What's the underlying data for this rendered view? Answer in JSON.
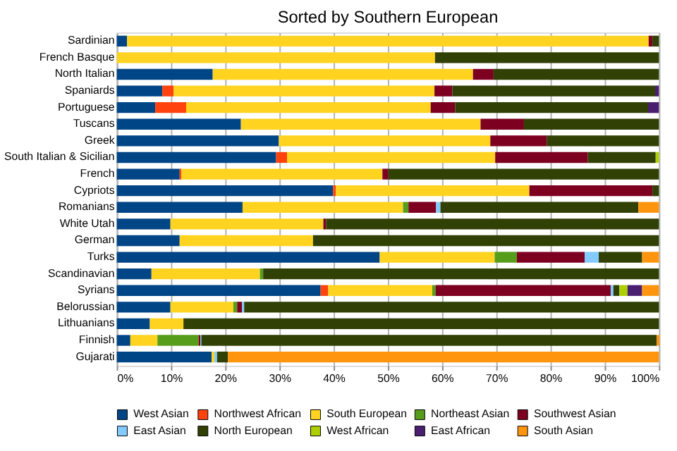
{
  "chart_data": {
    "type": "bar",
    "orientation": "horizontal",
    "stacked": true,
    "title": "Sorted by Southern European",
    "categories": [
      "Sardinian",
      "French Basque",
      "North Italian",
      "Spaniards",
      "Portuguese",
      "Tuscans",
      "Greek",
      "South Italian & Sicilian",
      "French",
      "Cypriots",
      "Romanians",
      "White Utah",
      "German",
      "Turks",
      "Scandinavian",
      "Syrians",
      "Belorussian",
      "Lithuanians",
      "Finnish",
      "Gujarati"
    ],
    "xlim": [
      0,
      100
    ],
    "xticks": [
      {
        "value": 0,
        "label": "0%"
      },
      {
        "value": 10,
        "label": "10%"
      },
      {
        "value": 20,
        "label": "20%"
      },
      {
        "value": 30,
        "label": "30%"
      },
      {
        "value": 40,
        "label": "40%"
      },
      {
        "value": 50,
        "label": "50%"
      },
      {
        "value": 60,
        "label": "60%"
      },
      {
        "value": 70,
        "label": "70%"
      },
      {
        "value": 80,
        "label": "80%"
      },
      {
        "value": 90,
        "label": "90%"
      },
      {
        "value": 100,
        "label": "100%"
      }
    ],
    "grid": "x",
    "legend": "bottom",
    "series": [
      {
        "name": "West Asian",
        "color": "#004586",
        "values": [
          1.9,
          0,
          17.7,
          8.4,
          7.1,
          22.9,
          29.9,
          29.4,
          11.6,
          39.9,
          23.2,
          9.9,
          11.6,
          48.5,
          6.4,
          37.6,
          9.9,
          6.1,
          2.5,
          17.5
        ]
      },
      {
        "name": "Northwest African",
        "color": "#ff420e",
        "values": [
          0,
          0,
          0,
          2.1,
          5.7,
          0,
          0,
          2.0,
          0.3,
          0.5,
          0,
          0,
          0,
          0,
          0,
          1.4,
          0,
          0,
          0,
          0
        ]
      },
      {
        "name": "South European",
        "color": "#ffd320",
        "values": [
          96.2,
          58.7,
          48.0,
          48.1,
          45.1,
          44.2,
          39.0,
          38.4,
          37.1,
          35.7,
          29.6,
          28.2,
          24.6,
          21.2,
          20.0,
          19.2,
          11.6,
          6.2,
          5.0,
          0.5
        ]
      },
      {
        "name": "Northeast Asian",
        "color": "#579d1c",
        "values": [
          0,
          0,
          0,
          0,
          0,
          0,
          0,
          0,
          0,
          0,
          1.0,
          0,
          0,
          4.1,
          0.6,
          0.6,
          0.7,
          0,
          7.6,
          0
        ]
      },
      {
        "name": "Southwest Asian",
        "color": "#7e0021",
        "values": [
          0.7,
          0,
          3.8,
          3.3,
          4.5,
          8.0,
          10.4,
          17.1,
          1.1,
          22.7,
          5.1,
          0.5,
          0,
          12.5,
          0,
          32.3,
          0.9,
          0,
          0.3,
          0
        ]
      },
      {
        "name": "East Asian",
        "color": "#83caff",
        "values": [
          0,
          0,
          0,
          0,
          0,
          0,
          0,
          0,
          0,
          0,
          0.8,
          0,
          0,
          2.6,
          0,
          0.5,
          0.4,
          0,
          0.2,
          0.5
        ]
      },
      {
        "name": "North European",
        "color": "#314004",
        "values": [
          1.2,
          41.3,
          30.5,
          37.4,
          35.6,
          24.9,
          20.7,
          12.5,
          49.9,
          1.2,
          36.5,
          61.4,
          63.8,
          8.0,
          73.0,
          1.1,
          76.5,
          87.7,
          84.0,
          2.0
        ]
      },
      {
        "name": "West African",
        "color": "#aecf00",
        "values": [
          0,
          0,
          0,
          0,
          0,
          0,
          0,
          0.6,
          0,
          0,
          0,
          0,
          0,
          0,
          0,
          1.5,
          0,
          0,
          0,
          0
        ]
      },
      {
        "name": "East African",
        "color": "#4b1f6f",
        "values": [
          0,
          0,
          0,
          0.7,
          2.0,
          0,
          0,
          0,
          0,
          0,
          0,
          0,
          0,
          0,
          0,
          2.7,
          0,
          0,
          0,
          0
        ]
      },
      {
        "name": "South Asian",
        "color": "#ff950e",
        "values": [
          0,
          0,
          0,
          0,
          0,
          0,
          0,
          0,
          0,
          0,
          3.8,
          0,
          0,
          3.1,
          0,
          3.1,
          0,
          0,
          0.5,
          79.5
        ]
      }
    ]
  }
}
